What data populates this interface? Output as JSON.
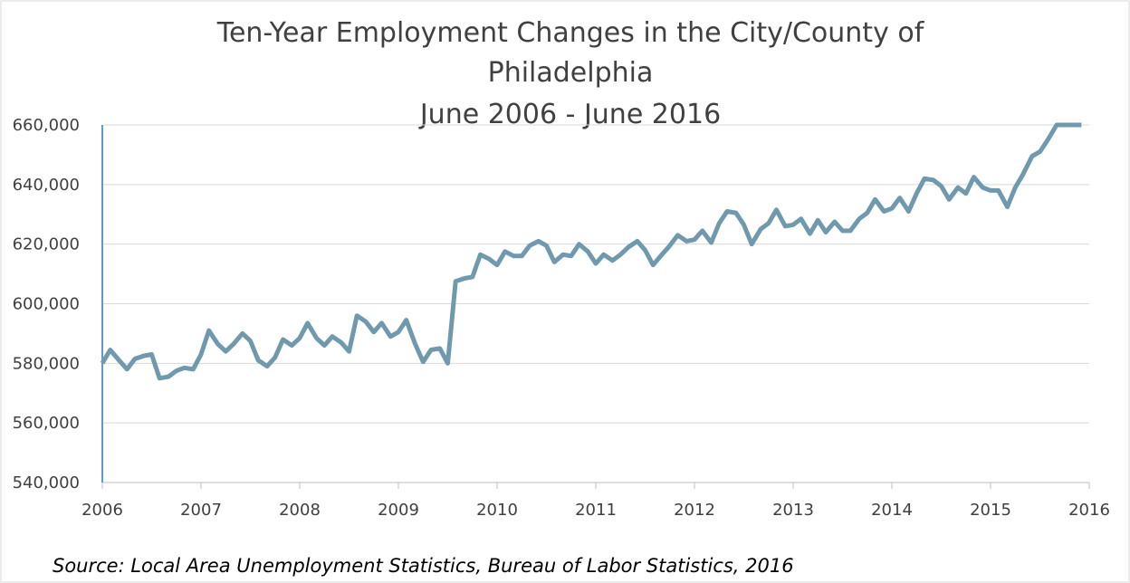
{
  "chart_data": {
    "type": "line",
    "title": [
      "Ten-Year Employment Changes in the City/County of",
      "Philadelphia",
      "June 2006 - June 2016"
    ],
    "source": "Source: Local Area Unemployment Statistics, Bureau of Labor Statistics, 2016",
    "x": [
      2006,
      2006.08,
      2006.17,
      2006.25,
      2006.33,
      2006.42,
      2006.5,
      2006.58,
      2006.67,
      2006.75,
      2006.83,
      2006.92,
      2007,
      2007.08,
      2007.17,
      2007.25,
      2007.33,
      2007.42,
      2007.5,
      2007.58,
      2007.67,
      2007.75,
      2007.83,
      2007.92,
      2008,
      2008.08,
      2008.17,
      2008.25,
      2008.33,
      2008.42,
      2008.5,
      2008.58,
      2008.67,
      2008.75,
      2008.83,
      2008.92,
      2009,
      2009.08,
      2009.17,
      2009.25,
      2009.33,
      2009.42,
      2009.5,
      2009.58,
      2009.67,
      2009.75,
      2009.83,
      2009.92,
      2010,
      2010.08,
      2010.17,
      2010.25,
      2010.33,
      2010.42,
      2010.5,
      2010.58,
      2010.67,
      2010.75,
      2010.83,
      2010.92,
      2011,
      2011.08,
      2011.17,
      2011.25,
      2011.33,
      2011.42,
      2011.5,
      2011.58,
      2011.67,
      2011.75,
      2011.83,
      2011.92,
      2012,
      2012.08,
      2012.17,
      2012.25,
      2012.33,
      2012.42,
      2012.5,
      2012.58,
      2012.67,
      2012.75,
      2012.83,
      2012.92,
      2013,
      2013.08,
      2013.17,
      2013.25,
      2013.33,
      2013.42,
      2013.5,
      2013.58,
      2013.67,
      2013.75,
      2013.83,
      2013.92,
      2014,
      2014.08,
      2014.17,
      2014.25,
      2014.33,
      2014.42,
      2014.5,
      2014.58,
      2014.67,
      2014.75,
      2014.83,
      2014.92,
      2015,
      2015.08,
      2015.17,
      2015.25,
      2015.33,
      2015.42,
      2015.5,
      2015.58,
      2015.67,
      2015.75,
      2015.83,
      2015.92
    ],
    "series": [
      {
        "name": "Employment",
        "color": "#7099ad",
        "values": [
          580000,
          584500,
          581000,
          578000,
          581500,
          582500,
          583000,
          575000,
          575500,
          577500,
          578500,
          578000,
          583000,
          591000,
          586500,
          584000,
          586500,
          590000,
          587500,
          581000,
          579000,
          582000,
          588000,
          586000,
          588500,
          593500,
          588500,
          586000,
          589000,
          587000,
          584000,
          596000,
          594000,
          590500,
          593500,
          589000,
          590500,
          594500,
          586500,
          580500,
          584500,
          585000,
          580000,
          607500,
          608500,
          609000,
          616500,
          615000,
          613000,
          617500,
          616000,
          616000,
          619500,
          621000,
          619500,
          614000,
          616500,
          616000,
          620000,
          617500,
          613500,
          616500,
          614500,
          616500,
          619000,
          621000,
          618000,
          613000,
          616500,
          619500,
          623000,
          621000,
          621500,
          624500,
          620500,
          627000,
          631000,
          630500,
          626500,
          620000,
          625000,
          627000,
          631500,
          626000,
          626500,
          628500,
          623500,
          628000,
          624000,
          627500,
          624500,
          624500,
          628500,
          630500,
          635000,
          631000,
          632000,
          635500,
          631000,
          637000,
          642000,
          641500,
          639500,
          635000,
          639000,
          637000,
          642500,
          639000,
          638000,
          638000,
          632500,
          639000,
          643500,
          649500,
          651000,
          655000,
          660000,
          660000,
          660000,
          660000
        ]
      }
    ],
    "xlim": [
      2006,
      2016
    ],
    "xticks": [
      2006,
      2007,
      2008,
      2009,
      2010,
      2011,
      2012,
      2013,
      2014,
      2015,
      2016
    ],
    "ylim": [
      540000,
      660000
    ],
    "yticks": [
      {
        "value": 540000,
        "label": "540,000"
      },
      {
        "value": 560000,
        "label": "560,000"
      },
      {
        "value": 580000,
        "label": "580,000"
      },
      {
        "value": 600000,
        "label": "600,000"
      },
      {
        "value": 620000,
        "label": "620,000"
      },
      {
        "value": 640000,
        "label": "640,000"
      },
      {
        "value": 660000,
        "label": "660,000"
      }
    ],
    "grid": true
  }
}
